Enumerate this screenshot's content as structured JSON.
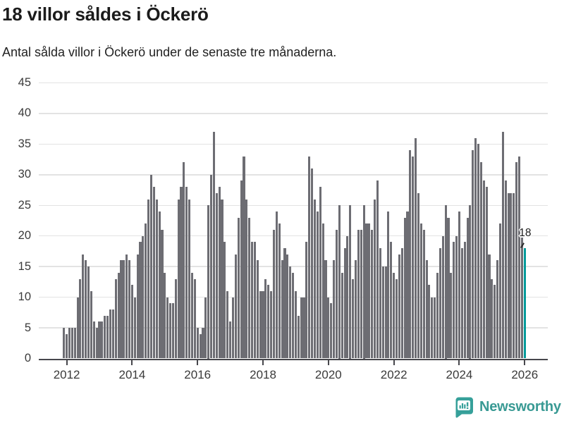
{
  "header": {
    "title": "18 villor såldes i Öckerö",
    "subtitle": "Antal sålda villor i Öckerö under de senaste tre månaderna."
  },
  "chart_data": {
    "type": "bar",
    "title": "18 villor såldes i Öckerö",
    "subtitle": "Antal sålda villor i Öckerö under de senaste tre månaderna.",
    "frequency": "monthly",
    "x_start": "2011-12",
    "x_end": "2026-01",
    "values": [
      5,
      4,
      5,
      5,
      5,
      10,
      13,
      17,
      16,
      15,
      11,
      6,
      5,
      6,
      6,
      7,
      7,
      8,
      8,
      13,
      14,
      16,
      16,
      17,
      16,
      12,
      10,
      17,
      19,
      20,
      22,
      26,
      30,
      28,
      26,
      24,
      21,
      14,
      10,
      9,
      9,
      13,
      26,
      28,
      32,
      28,
      26,
      14,
      13,
      5,
      4,
      5,
      10,
      25,
      30,
      37,
      27,
      28,
      26,
      19,
      11,
      6,
      10,
      17,
      23,
      29,
      33,
      26,
      23,
      19,
      19,
      16,
      11,
      11,
      13,
      12,
      11,
      21,
      24,
      22,
      16,
      18,
      17,
      15,
      14,
      11,
      7,
      10,
      10,
      19,
      33,
      31,
      26,
      24,
      28,
      22,
      16,
      10,
      9,
      16,
      21,
      25,
      14,
      18,
      20,
      25,
      13,
      16,
      21,
      21,
      25,
      22,
      22,
      21,
      26,
      29,
      18,
      15,
      15,
      24,
      19,
      14,
      13,
      17,
      18,
      23,
      24,
      34,
      33,
      36,
      27,
      22,
      21,
      16,
      12,
      10,
      10,
      14,
      18,
      20,
      25,
      23,
      14,
      19,
      20,
      24,
      18,
      19,
      23,
      25,
      34,
      36,
      35,
      32,
      29,
      28,
      17,
      13,
      12,
      16,
      22,
      37,
      29,
      27,
      27,
      27,
      32,
      33,
      20,
      18
    ],
    "highlight_last_value": 18,
    "annotation": "18",
    "ylim": [
      0,
      45
    ],
    "yticks": [
      0,
      5,
      10,
      15,
      20,
      25,
      30,
      35,
      40,
      45
    ],
    "xticks": [
      2012,
      2014,
      2016,
      2018,
      2020,
      2022,
      2024,
      2026
    ],
    "grid": "horizontal",
    "legend": "none",
    "colors": {
      "bar": "#6d6d73",
      "highlight": "#009a9a",
      "grid": "#e3e3e3",
      "axis": "#47474c",
      "tick_text": "#3a3a3a"
    }
  },
  "footer": {
    "brand": "Newsworthy",
    "brand_color": "#399a94",
    "icon": "newsworthy-pin-barchart-icon",
    "icon_color": "#36a09a"
  }
}
